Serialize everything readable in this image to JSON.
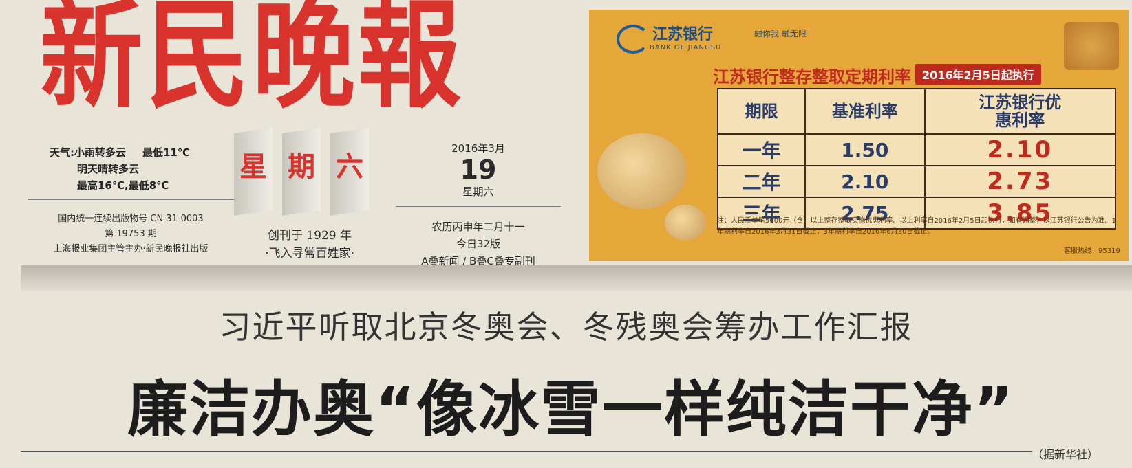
{
  "masthead": {
    "title": "新民晚報"
  },
  "weather": {
    "line1_a": "天气:小雨转多云",
    "line1_b": "最低11℃",
    "line2": "明天晴转多云",
    "line3": "最高16℃,最低8℃"
  },
  "pubinfo": {
    "line1": "国内统一连续出版物号 CN 31-0003",
    "line2": "第 19753 期",
    "line3": "上海报业集团主管主办·新民晚报社出版"
  },
  "weekday_big": [
    "星",
    "期",
    "六"
  ],
  "founded": {
    "line1": "创刊于 1929 年",
    "line2": "·飞入寻常百姓家·"
  },
  "date": {
    "year_month": "2016年3月",
    "day": "19",
    "weekday": "星期六",
    "lunar": "农历丙申年二月十一",
    "pages": "今日32版",
    "sections": "A叠新闻 / B叠C叠专副刊"
  },
  "ad": {
    "brand": "江苏银行",
    "brand_en": "BANK OF JIANGSU",
    "slogan": "融你我 融无限",
    "title": "江苏银行整存整取定期利率",
    "tag": "2016年2月5日起执行",
    "table": {
      "headers": [
        "期限",
        "基准利率",
        "江苏银行优惠利率"
      ],
      "rows": [
        [
          "一年",
          "1.50",
          "2.10"
        ],
        [
          "二年",
          "2.10",
          "2.73"
        ],
        [
          "三年",
          "2.75",
          "3.85"
        ]
      ]
    },
    "note": "注：人民币单笔5000元（含）以上整存整取实施优惠利率。以上利率自2016年2月5日起执行，如有调整，以江苏银行公告为准。1年期利率自2016年3月31日截止，3年期利率自2016年6月30日截止。",
    "hotline": "客服热线：95319"
  },
  "news": {
    "subhead": "习近平听取北京冬奥会、冬残奥会筹办工作汇报",
    "headline": "廉洁办奥“像冰雪一样纯洁干净”",
    "source": "（据新华社）"
  }
}
